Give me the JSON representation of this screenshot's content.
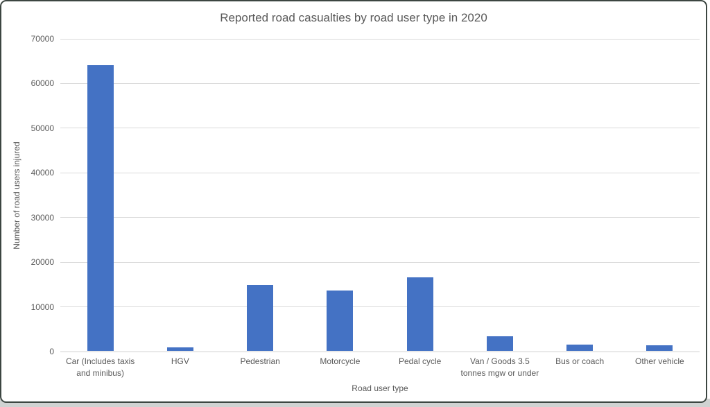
{
  "window": {
    "border_color": "#3C4641",
    "background": "#FFFFFF",
    "bottom_strip_color": "#D0D3D2"
  },
  "chart_data": {
    "type": "bar",
    "title": "Reported road casualties by road user type in 2020",
    "xlabel": "Road user type",
    "ylabel": "Number of road users injured",
    "categories": [
      "Car (Includes taxis and minibus)",
      "HGV",
      "Pedestrian",
      "Motorcycle",
      "Pedal cycle",
      "Van / Goods 3.5 tonnes mgw or under",
      "Bus or coach",
      "Other vehicle"
    ],
    "values": [
      64000,
      800,
      14700,
      13500,
      16400,
      3200,
      1400,
      1200
    ],
    "ylim": [
      0,
      70000
    ],
    "yticks": [
      0,
      10000,
      20000,
      30000,
      40000,
      50000,
      60000,
      70000
    ],
    "grid": true,
    "legend_position": "none",
    "bar_color": "#4472C4",
    "gridline_color": "#D9D9D9",
    "axis_line_color": "#CFCFCF",
    "text_color": "#595959"
  }
}
